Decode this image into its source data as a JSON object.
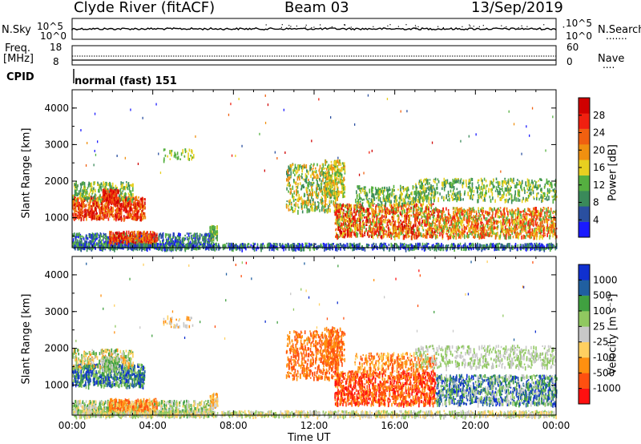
{
  "header": {
    "station": "Clyde River (fitACF)",
    "beam": "Beam 03",
    "date": "13/Sep/2019"
  },
  "top_panel": {
    "left_label": "N.Sky",
    "left_ticks": [
      "10^5",
      "10^0"
    ],
    "right_label": "N.Search",
    "right_ticks": [
      "10^5",
      "10^0"
    ],
    "right_legend_line": "......."
  },
  "freq_panel": {
    "left_label_1": "Freq.",
    "left_label_2": "[MHz]",
    "left_ticks": [
      "18",
      "8"
    ],
    "right_label": "Nave",
    "right_ticks": [
      "60",
      "0"
    ],
    "right_legend_line": "...."
  },
  "cpid": {
    "label": "CPID",
    "text": "normal (fast) 151"
  },
  "colors": {
    "power": [
      "#1a1aff",
      "#2a4fa0",
      "#3a8a5a",
      "#55b040",
      "#e8d020",
      "#f09010",
      "#f06010",
      "#f02010",
      "#d00000"
    ],
    "velocity": [
      "#ff1010",
      "#ff5010",
      "#ff9010",
      "#ffd060",
      "#c8c8c8",
      "#90c860",
      "#40a040",
      "#205fa0",
      "#1030d0"
    ]
  },
  "chart_data": [
    {
      "type": "heatmap",
      "title": "",
      "ylabel": "Slant Range [km]",
      "xlabel": "",
      "ylim": [
        180,
        4500
      ],
      "yticks": [
        "1000",
        "2000",
        "3000",
        "4000"
      ],
      "xticks": [
        "00:00",
        "04:00",
        "08:00",
        "12:00",
        "16:00",
        "20:00",
        "00:00"
      ],
      "colorbar": {
        "label": "Power [dB]",
        "ticks": [
          "4",
          "8",
          "12",
          "16",
          "20",
          "24",
          "28"
        ]
      }
    },
    {
      "type": "heatmap",
      "title": "",
      "ylabel": "Slant Range [km]",
      "xlabel": "Time UT",
      "ylim": [
        180,
        4500
      ],
      "yticks": [
        "1000",
        "2000",
        "3000",
        "4000"
      ],
      "xticks": [
        "00:00",
        "04:00",
        "08:00",
        "12:00",
        "16:00",
        "20:00",
        "00:00"
      ],
      "colorbar": {
        "label": "Velocity [m s⁻¹]",
        "ticks": [
          "-1000",
          "-500",
          "-100",
          "-25",
          "25",
          "100",
          "500",
          "1000"
        ]
      }
    }
  ]
}
